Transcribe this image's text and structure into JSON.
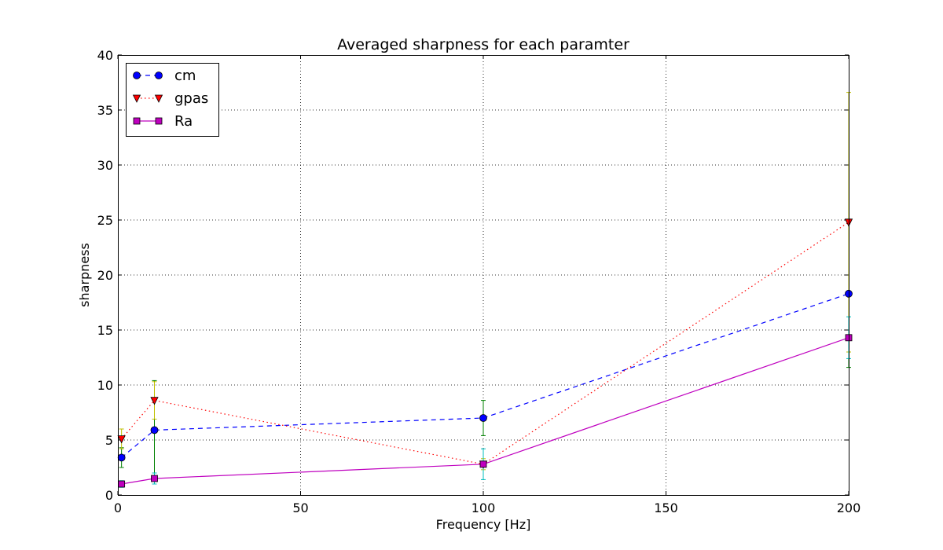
{
  "chart_data": {
    "type": "line",
    "title": "Averaged sharpness for each paramter",
    "xlabel": "Frequency [Hz]",
    "ylabel": "sharpness",
    "xlim": [
      0,
      200
    ],
    "ylim": [
      0,
      40
    ],
    "xticks": [
      0,
      50,
      100,
      150,
      200
    ],
    "yticks": [
      0,
      5,
      10,
      15,
      20,
      25,
      30,
      35,
      40
    ],
    "grid": true,
    "legend_position": "top-left",
    "x": [
      1,
      10,
      100,
      200
    ],
    "series": [
      {
        "name": "cm",
        "values": [
          3.4,
          5.9,
          7.0,
          18.3
        ],
        "errors": [
          0.9,
          4.5,
          1.6,
          6.7
        ],
        "color": "#0000ff",
        "error_color": "#008000",
        "marker": "circle",
        "dash": "6,5"
      },
      {
        "name": "gpas",
        "values": [
          5.1,
          8.6,
          2.8,
          24.8
        ],
        "errors": [
          0.9,
          1.7,
          0.5,
          11.8
        ],
        "color": "#ff0000",
        "error_color": "#bfbf00",
        "marker": "triangle-down",
        "dash": "1.5,3.5"
      },
      {
        "name": "Ra",
        "values": [
          1.0,
          1.5,
          2.8,
          14.3
        ],
        "errors": [
          0.3,
          0.5,
          1.4,
          1.9
        ],
        "color": "#bf00bf",
        "error_color": "#00bfbf",
        "marker": "square",
        "dash": ""
      }
    ]
  }
}
